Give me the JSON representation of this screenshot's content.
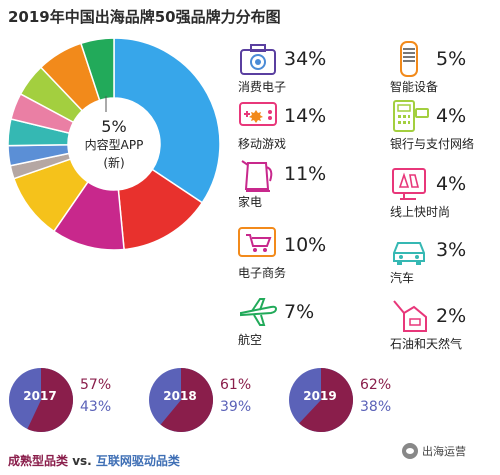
{
  "title": "2019年中国出海品牌50强品牌力分布图",
  "chart_data": [
    {
      "type": "pie",
      "categories": [
        "消费电子",
        "移动游戏",
        "家电",
        "电子商务",
        "航空",
        "内容型APP (新)",
        "智能设备",
        "银行与支付网络",
        "线上快时尚",
        "汽车",
        "石油和天然气"
      ],
      "values": [
        34,
        14,
        11,
        10,
        7,
        5,
        5,
        4,
        4,
        3,
        2
      ],
      "colors": [
        "#37a6ea",
        "#e8312d",
        "#c8288c",
        "#f5c21b",
        "#f28a1b",
        "#22aa5a",
        "#a3cf3f",
        "#ea7fa4",
        "#35b8b3",
        "#5b8fd6",
        "#b5a7a3"
      ],
      "center": {
        "pct": "5%",
        "label": "内容型APP",
        "sub": "(新)"
      }
    },
    {
      "type": "pie",
      "title": "2017",
      "categories": [
        "成熟型品类",
        "互联网驱动品类"
      ],
      "values": [
        57,
        43
      ]
    },
    {
      "type": "pie",
      "title": "2018",
      "categories": [
        "成熟型品类",
        "互联网驱动品类"
      ],
      "values": [
        61,
        39
      ]
    },
    {
      "type": "pie",
      "title": "2019",
      "categories": [
        "成熟型品类",
        "互联网驱动品类"
      ],
      "values": [
        62,
        38
      ]
    }
  ],
  "legend": [
    {
      "pct": "34%",
      "name": "消费电子",
      "icon": "camera-icon"
    },
    {
      "pct": "14%",
      "name": "移动游戏",
      "icon": "phone-game-icon"
    },
    {
      "pct": "11%",
      "name": "家电",
      "icon": "kettle-icon"
    },
    {
      "pct": "10%",
      "name": "电子商务",
      "icon": "shopping-cart-icon"
    },
    {
      "pct": "7%",
      "name": "航空",
      "icon": "airplane-icon"
    },
    {
      "pct": "5%",
      "name": "智能设备",
      "icon": "smart-speaker-icon"
    },
    {
      "pct": "4%",
      "name": "银行与支付网络",
      "icon": "pos-terminal-icon"
    },
    {
      "pct": "4%",
      "name": "线上快时尚",
      "icon": "fashion-screen-icon"
    },
    {
      "pct": "3%",
      "name": "汽车",
      "icon": "car-icon"
    },
    {
      "pct": "2%",
      "name": "石油和天然气",
      "icon": "oil-can-icon"
    }
  ],
  "years": [
    {
      "year": "2017",
      "pct_a": "57%",
      "pct_b": "43%",
      "share_a": 0.57
    },
    {
      "year": "2018",
      "pct_a": "61%",
      "pct_b": "39%",
      "share_a": 0.61
    },
    {
      "year": "2019",
      "pct_a": "62%",
      "pct_b": "38%",
      "share_a": 0.62
    }
  ],
  "footer": {
    "label_a": "成熟型品类",
    "vs": " vs. ",
    "label_b": "互联网驱动品类"
  },
  "watermark": "出海运营",
  "colors": {
    "mature": "#8a1e4b",
    "internet": "#5b62b8",
    "icon_accent": "#e0266e",
    "icon_line": "#4a4a4a",
    "icon_pink": "#e8377a",
    "icon_orange": "#f28a1b",
    "icon_green": "#22aa5a",
    "icon_teal": "#35b8b3",
    "icon_red": "#c8288c"
  }
}
